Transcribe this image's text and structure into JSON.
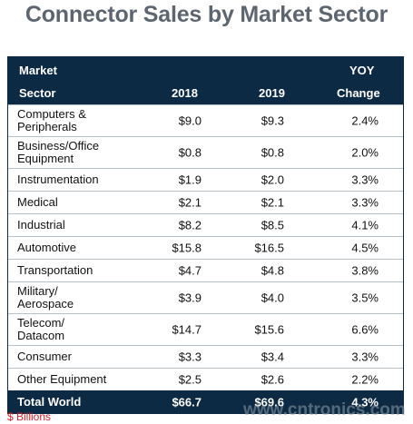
{
  "chart_data": {
    "type": "table",
    "title": "Connector Sales by Market Sector",
    "columns": {
      "sector_line1": "Market",
      "sector_line2": "Sector",
      "y2018": "2018",
      "y2019": "2019",
      "change_line1": "YOY",
      "change_line2": "Change"
    },
    "rows": [
      {
        "sector": "Computers &\nPeripherals",
        "y2018": "$9.0",
        "y2019": "$9.3",
        "change": "2.4%"
      },
      {
        "sector": "Business/Office\nEquipment",
        "y2018": "$0.8",
        "y2019": "$0.8",
        "change": "2.0%"
      },
      {
        "sector": "Instrumentation",
        "y2018": "$1.9",
        "y2019": "$2.0",
        "change": "3.3%"
      },
      {
        "sector": "Medical",
        "y2018": "$2.1",
        "y2019": "$2.1",
        "change": "3.3%"
      },
      {
        "sector": "Industrial",
        "y2018": "$8.2",
        "y2019": "$8.5",
        "change": "4.1%"
      },
      {
        "sector": "Automotive",
        "y2018": "$15.8",
        "y2019": "$16.5",
        "change": "4.5%"
      },
      {
        "sector": "Transportation",
        "y2018": "$4.7",
        "y2019": "$4.8",
        "change": "3.8%"
      },
      {
        "sector": "Military/\nAerospace",
        "y2018": "$3.9",
        "y2019": "$4.0",
        "change": "3.5%"
      },
      {
        "sector": "Telecom/\nDatacom",
        "y2018": "$14.7",
        "y2019": "$15.6",
        "change": "6.6%"
      },
      {
        "sector": "Consumer",
        "y2018": "$3.3",
        "y2019": "$3.4",
        "change": "3.3%"
      },
      {
        "sector": "Other Equipment",
        "y2018": "$2.5",
        "y2019": "$2.6",
        "change": "2.2%"
      }
    ],
    "total": {
      "sector": "Total World",
      "y2018": "$66.7",
      "y2019": "$69.6",
      "change": "4.3%"
    },
    "footnote": "$ Billions"
  },
  "watermark": "www.cntronics.com",
  "colors": {
    "header_bg": "#0d2a45",
    "title": "#5d6670",
    "footnote": "#d8232a"
  }
}
